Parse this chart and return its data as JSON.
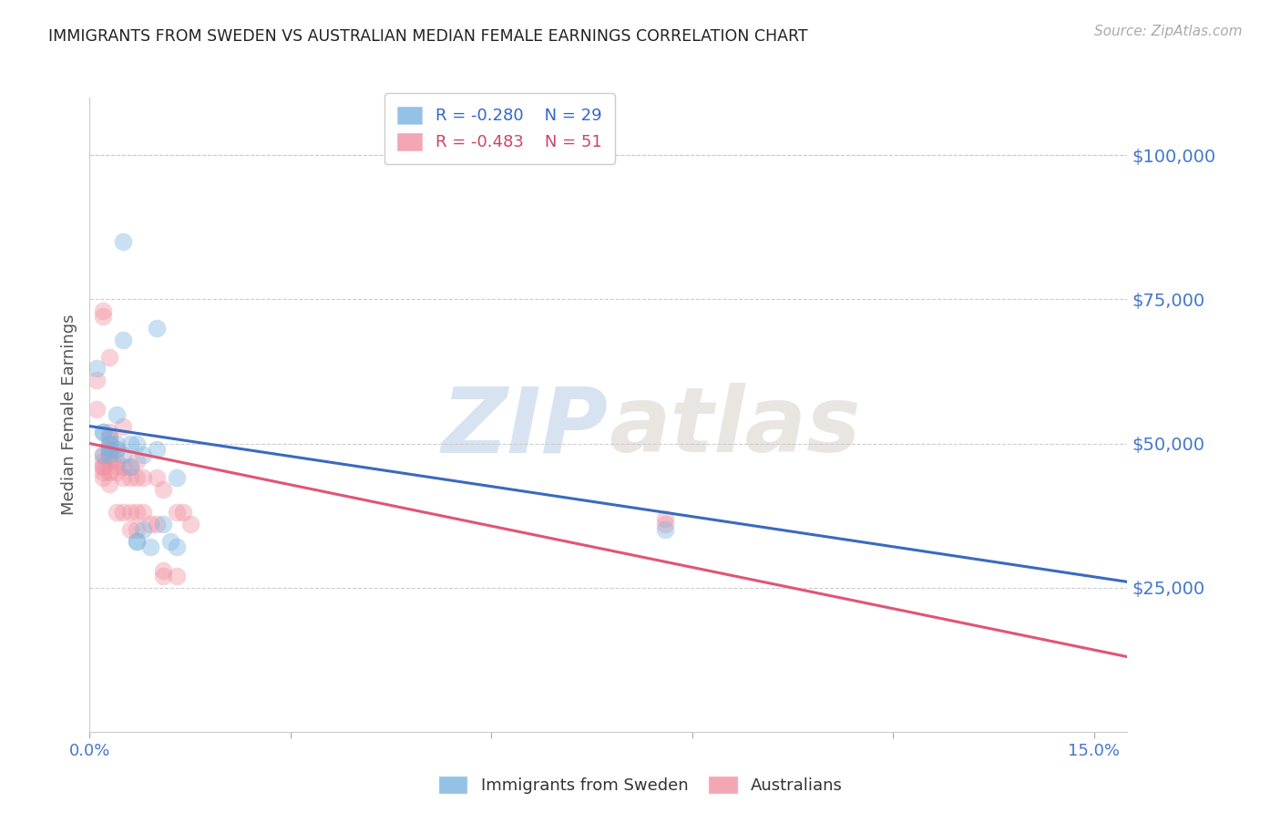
{
  "title": "IMMIGRANTS FROM SWEDEN VS AUSTRALIAN MEDIAN FEMALE EARNINGS CORRELATION CHART",
  "source": "Source: ZipAtlas.com",
  "ylabel": "Median Female Earnings",
  "ytick_labels": [
    "$25,000",
    "$50,000",
    "$75,000",
    "$100,000"
  ],
  "ytick_values": [
    25000,
    50000,
    75000,
    100000
  ],
  "ylim": [
    0,
    110000
  ],
  "xlim": [
    0.0,
    0.155
  ],
  "watermark_zip": "ZIP",
  "watermark_atlas": "atlas",
  "legend_blue_r": "R = -0.280",
  "legend_blue_n": "N = 29",
  "legend_pink_r": "R = -0.483",
  "legend_pink_n": "N = 51",
  "blue_color": "#7ab3e0",
  "pink_color": "#f090a0",
  "trendline_blue_color": "#3a6abf",
  "trendline_pink_color": "#e05575",
  "blue_scatter": [
    [
      0.001,
      63000
    ],
    [
      0.002,
      52000
    ],
    [
      0.002,
      48000
    ],
    [
      0.002,
      52000
    ],
    [
      0.003,
      50000
    ],
    [
      0.003,
      48000
    ],
    [
      0.003,
      51000
    ],
    [
      0.003,
      49000
    ],
    [
      0.004,
      55000
    ],
    [
      0.004,
      50000
    ],
    [
      0.004,
      49000
    ],
    [
      0.005,
      68000
    ],
    [
      0.005,
      48000
    ],
    [
      0.005,
      85000
    ],
    [
      0.006,
      50000
    ],
    [
      0.006,
      46000
    ],
    [
      0.007,
      50000
    ],
    [
      0.007,
      33000
    ],
    [
      0.007,
      33000
    ],
    [
      0.008,
      48000
    ],
    [
      0.008,
      35000
    ],
    [
      0.009,
      32000
    ],
    [
      0.01,
      49000
    ],
    [
      0.01,
      70000
    ],
    [
      0.011,
      36000
    ],
    [
      0.012,
      33000
    ],
    [
      0.013,
      44000
    ],
    [
      0.013,
      32000
    ],
    [
      0.086,
      35000
    ]
  ],
  "pink_scatter": [
    [
      0.001,
      61000
    ],
    [
      0.001,
      56000
    ],
    [
      0.002,
      73000
    ],
    [
      0.002,
      72000
    ],
    [
      0.002,
      48000
    ],
    [
      0.002,
      47000
    ],
    [
      0.002,
      46000
    ],
    [
      0.002,
      46000
    ],
    [
      0.002,
      45000
    ],
    [
      0.002,
      44000
    ],
    [
      0.003,
      65000
    ],
    [
      0.003,
      52000
    ],
    [
      0.003,
      51000
    ],
    [
      0.003,
      50000
    ],
    [
      0.003,
      49000
    ],
    [
      0.003,
      49000
    ],
    [
      0.003,
      48000
    ],
    [
      0.003,
      47000
    ],
    [
      0.003,
      45000
    ],
    [
      0.003,
      43000
    ],
    [
      0.004,
      49000
    ],
    [
      0.004,
      47000
    ],
    [
      0.004,
      46000
    ],
    [
      0.004,
      45000
    ],
    [
      0.004,
      38000
    ],
    [
      0.005,
      53000
    ],
    [
      0.005,
      46000
    ],
    [
      0.005,
      44000
    ],
    [
      0.005,
      38000
    ],
    [
      0.006,
      46000
    ],
    [
      0.006,
      44000
    ],
    [
      0.006,
      38000
    ],
    [
      0.006,
      35000
    ],
    [
      0.007,
      47000
    ],
    [
      0.007,
      44000
    ],
    [
      0.007,
      38000
    ],
    [
      0.007,
      35000
    ],
    [
      0.008,
      44000
    ],
    [
      0.008,
      38000
    ],
    [
      0.009,
      36000
    ],
    [
      0.01,
      44000
    ],
    [
      0.01,
      36000
    ],
    [
      0.011,
      42000
    ],
    [
      0.011,
      28000
    ],
    [
      0.011,
      27000
    ],
    [
      0.013,
      38000
    ],
    [
      0.013,
      27000
    ],
    [
      0.014,
      38000
    ],
    [
      0.015,
      36000
    ],
    [
      0.086,
      36000
    ],
    [
      0.086,
      37000
    ]
  ],
  "blue_line_x": [
    0.0,
    0.155
  ],
  "blue_line_y": [
    53000,
    26000
  ],
  "pink_line_x": [
    0.0,
    0.155
  ],
  "pink_line_y": [
    50000,
    13000
  ],
  "background_color": "#ffffff",
  "grid_color": "#cccccc",
  "marker_size": 200,
  "marker_alpha": 0.4
}
